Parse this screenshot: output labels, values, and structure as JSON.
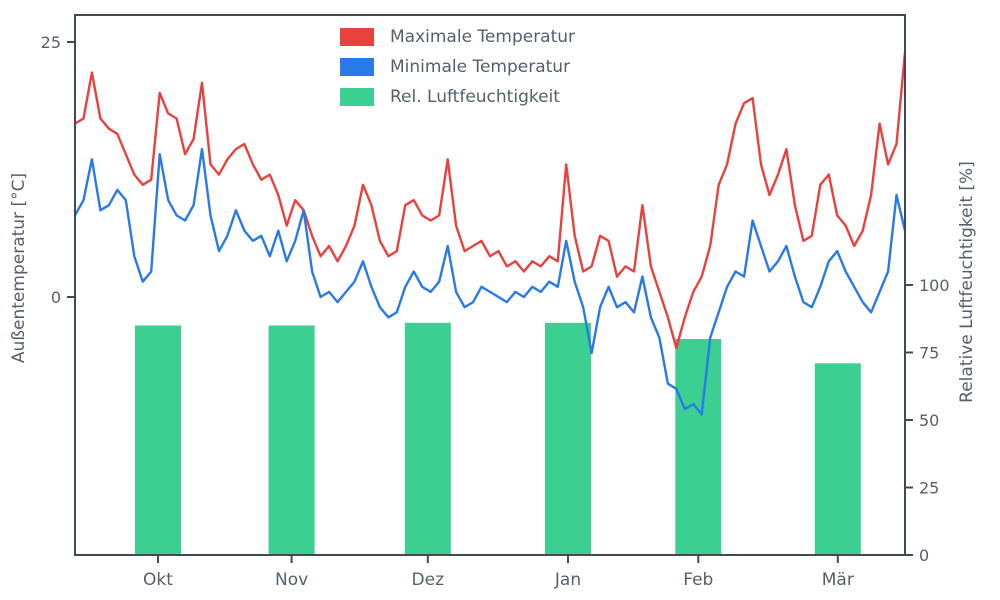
{
  "chart_data": {
    "type": "line",
    "title": "",
    "xlabel": "",
    "ylabel_left": "Außentemperatur [°C]",
    "ylabel_right": "Relative Luftfeuchtigkeit [%]",
    "categories": [
      "Okt",
      "Nov",
      "Dez",
      "Jan",
      "Feb",
      "Mär"
    ],
    "ylim_left": [
      -25.3,
      27.6
    ],
    "yticks_left": [
      0,
      25
    ],
    "ylim_right": [
      0,
      200
    ],
    "yticks_right": [
      0,
      25,
      50,
      75,
      100
    ],
    "grid": false,
    "legend_position": "top-center",
    "axis_color": "#3f4a54",
    "text_color": "#545f6b",
    "series": [
      {
        "name": "Maximale Temperatur",
        "color": "#e8413e",
        "axis": "left",
        "values": [
          17,
          17.5,
          22,
          17.5,
          16.5,
          16,
          14,
          12,
          11,
          11.5,
          20,
          18,
          17.5,
          14,
          15.5,
          21,
          13,
          12,
          13.5,
          14.5,
          15,
          13,
          11.5,
          12,
          10,
          7,
          9.5,
          8.5,
          6,
          4,
          5,
          3.5,
          5,
          7,
          11,
          9,
          5.5,
          4,
          4.5,
          9,
          9.5,
          8,
          7.5,
          8,
          13.5,
          7,
          4.5,
          5,
          5.5,
          4,
          4.5,
          3,
          3.5,
          2.5,
          3.5,
          3,
          4,
          3.5,
          13,
          6,
          2.5,
          3,
          6,
          5.5,
          2,
          3,
          2.5,
          9,
          3,
          0.5,
          -2,
          -5,
          -2,
          0.5,
          2,
          5,
          11,
          13,
          17,
          19,
          19.5,
          13,
          10,
          12,
          14.5,
          9,
          5.5,
          6,
          11,
          12,
          8,
          7,
          5,
          6.5,
          10,
          17,
          13,
          15,
          24
        ]
      },
      {
        "name": "Minimale Temperatur",
        "color": "#2979e8",
        "axis": "left",
        "values": [
          8,
          9.5,
          13.5,
          8.5,
          9,
          10.5,
          9.5,
          4,
          1.5,
          2.5,
          14,
          9.5,
          8,
          7.5,
          9,
          14.5,
          8,
          4.5,
          6,
          8.5,
          6.5,
          5.5,
          6,
          4,
          6.5,
          3.5,
          5.5,
          8.5,
          2.5,
          0,
          0.5,
          -0.5,
          0.5,
          1.5,
          3.5,
          1,
          -1,
          -2,
          -1.5,
          1,
          2.5,
          1,
          0.5,
          1.5,
          5,
          0.5,
          -1,
          -0.5,
          1,
          0.5,
          0,
          -0.5,
          0.5,
          0,
          1,
          0.5,
          1.5,
          1,
          5.5,
          1.5,
          -1,
          -5.5,
          -1,
          1,
          -1,
          -0.5,
          -1.5,
          2,
          -2,
          -4,
          -8.5,
          -9,
          -11,
          -10.5,
          -11.5,
          -4,
          -1.5,
          1,
          2.5,
          2,
          7.5,
          5,
          2.5,
          3.5,
          5,
          2,
          -0.5,
          -1,
          1,
          3.5,
          4.5,
          2.5,
          1,
          -0.5,
          -1.5,
          0.5,
          2.5,
          10,
          6.5
        ]
      }
    ],
    "humidity_bars": {
      "name": "Rel. Luftfeuchtigkeit",
      "type": "bar",
      "color": "#3bcf92",
      "axis": "right",
      "month_center_frac": [
        0.1,
        0.261,
        0.425,
        0.594,
        0.751,
        0.919
      ],
      "values": [
        85,
        85,
        86,
        86,
        80,
        71
      ]
    }
  }
}
